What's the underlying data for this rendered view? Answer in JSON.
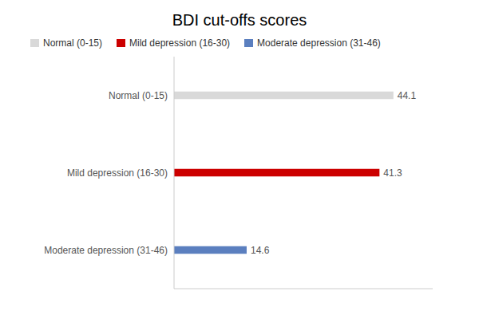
{
  "chart_data": {
    "type": "bar",
    "title": "BDI cut-offs scores",
    "orientation": "horizontal",
    "categories": [
      "Moderate depression (31-46)",
      "Mild depression (16-30)",
      "Normal (0-15)"
    ],
    "values": [
      14.6,
      41.3,
      44.1
    ],
    "colors": [
      "#5b7fbf",
      "#cc0000",
      "#d9d9d9"
    ],
    "xlim": [
      0,
      52
    ],
    "data_labels": true,
    "tick_labels": "y",
    "grid": false,
    "legend": "top"
  }
}
